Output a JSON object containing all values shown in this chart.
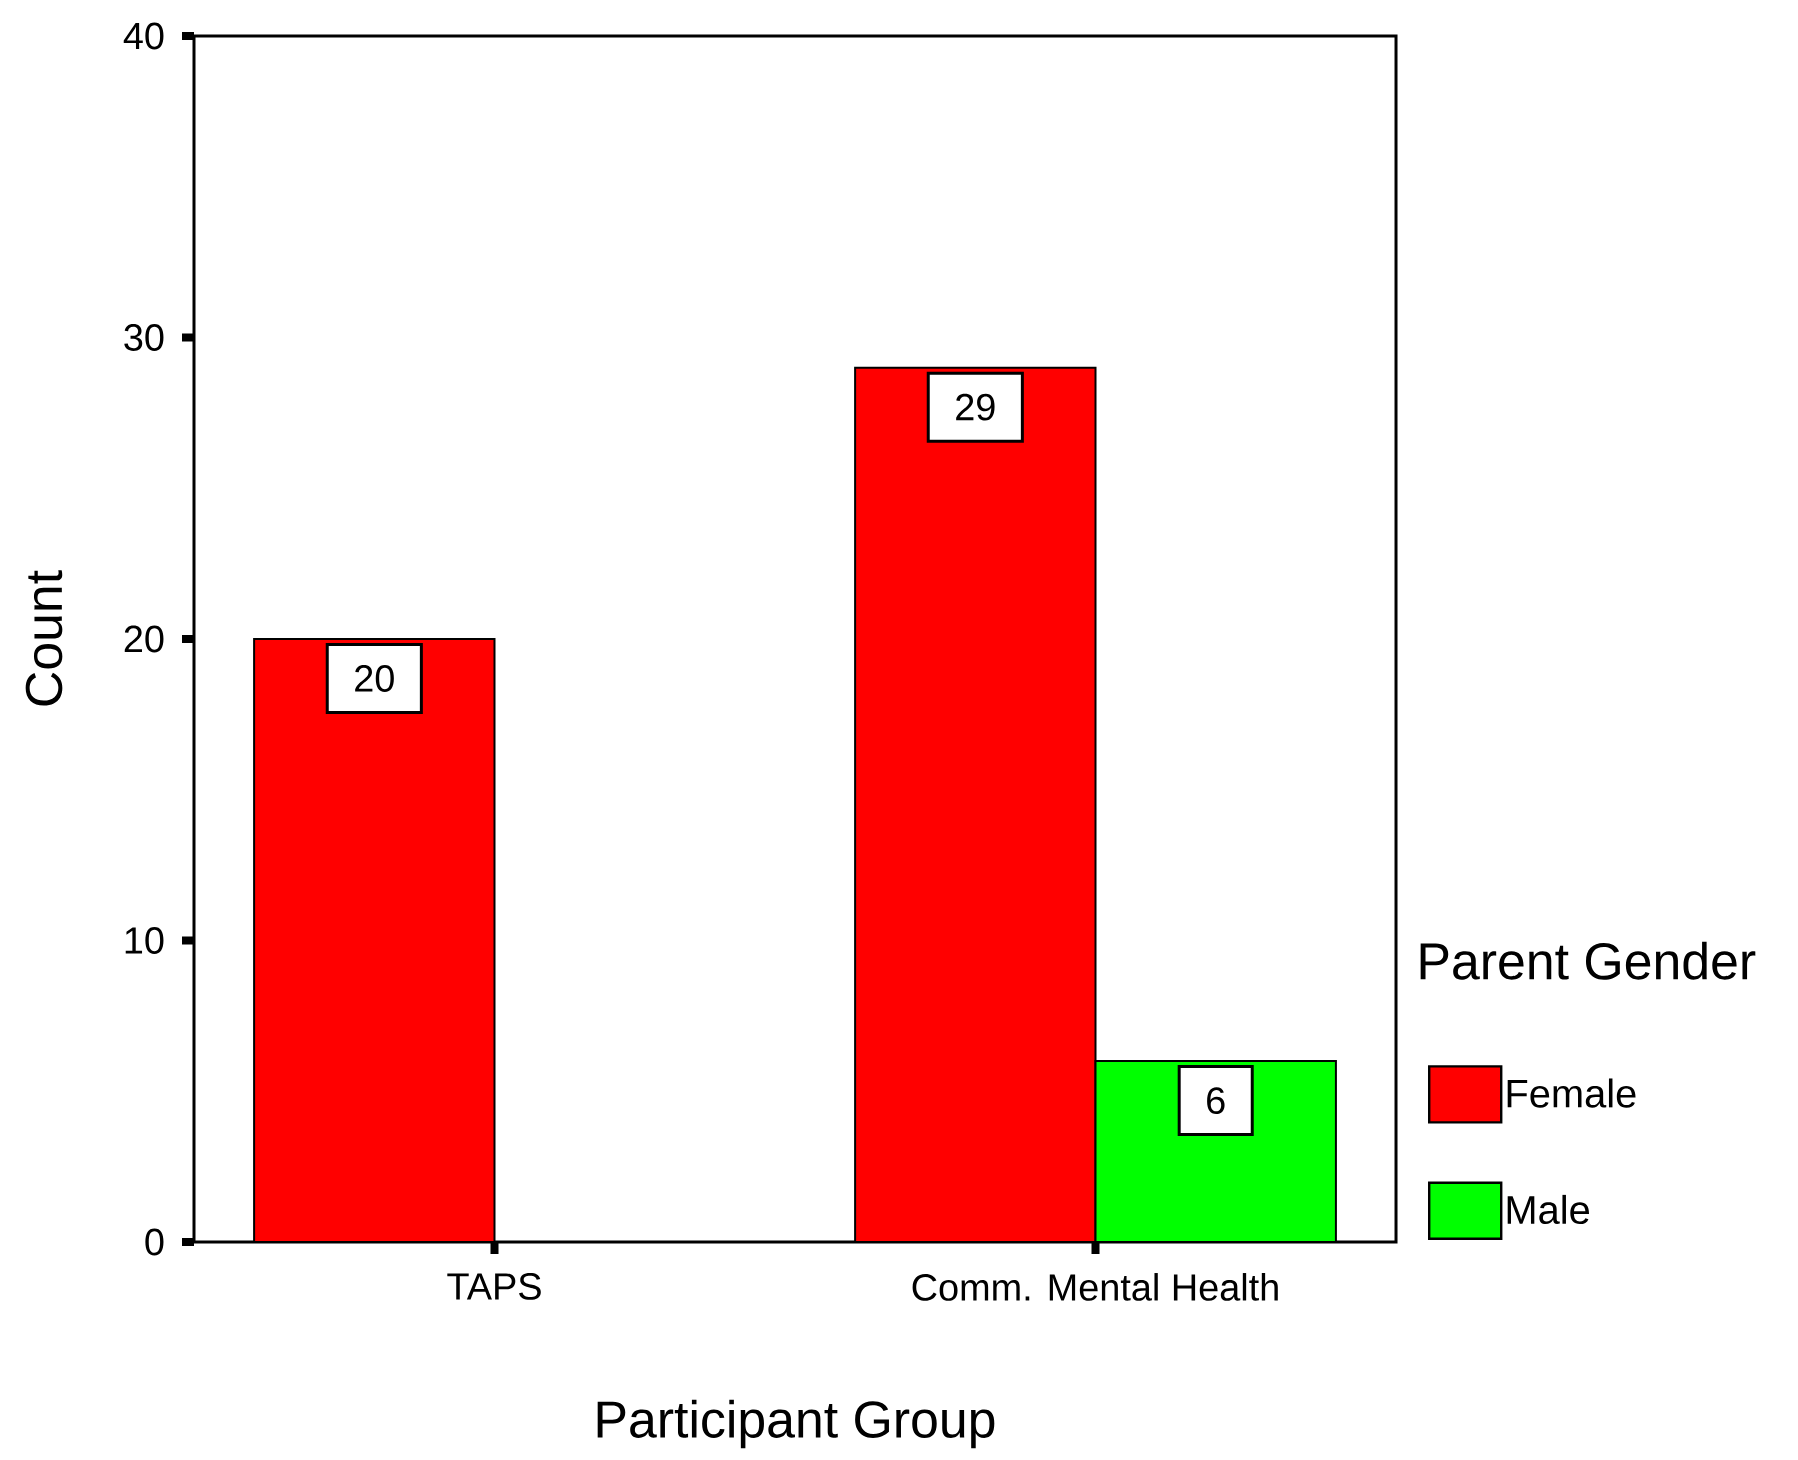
{
  "chart_data": {
    "type": "bar",
    "xlabel": "Participant Group",
    "ylabel": "Count",
    "categories": [
      "TAPS",
      "Comm. Mental Health"
    ],
    "series": [
      {
        "name": "Female",
        "color": "#ff0000",
        "values": [
          20,
          29
        ]
      },
      {
        "name": "Male",
        "color": "#00ff00",
        "values": [
          null,
          6
        ]
      }
    ],
    "ylim": [
      0,
      40
    ],
    "yticks": [
      0,
      10,
      20,
      30,
      40
    ],
    "legend": "right",
    "legend_title": "Parent Gender",
    "data_labels": true
  }
}
